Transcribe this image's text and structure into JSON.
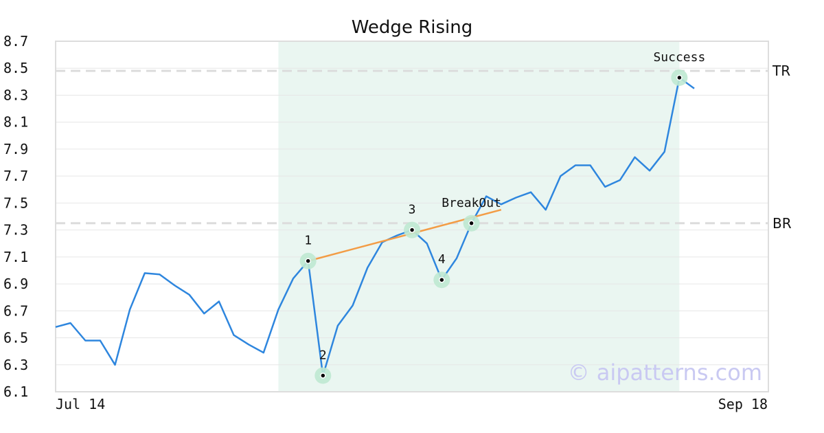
{
  "chart_data": {
    "type": "line",
    "title": "Wedge Rising",
    "xlabel": "",
    "ylabel": "",
    "ylim": [
      6.1,
      8.7
    ],
    "yticks": [
      "8.7",
      "8.5",
      "8.3",
      "8.1",
      "7.9",
      "7.7",
      "7.5",
      "7.3",
      "7.1",
      "6.9",
      "6.7",
      "6.5",
      "6.3",
      "6.1"
    ],
    "x_range_labels": [
      "Jul 14",
      "Sep 18"
    ],
    "grid": true,
    "series": [
      {
        "color": "#2e86de",
        "values": [
          6.58,
          6.61,
          6.48,
          6.48,
          6.3,
          6.71,
          6.98,
          6.97,
          6.89,
          6.82,
          6.68,
          6.77,
          6.52,
          6.45,
          6.39,
          6.71,
          6.94,
          7.07,
          6.22,
          6.59,
          6.74,
          7.02,
          7.21,
          7.26,
          7.3,
          7.2,
          6.93,
          7.09,
          7.35,
          7.55,
          7.49,
          7.54,
          7.58,
          7.45,
          7.7,
          7.78,
          7.78,
          7.62,
          7.67,
          7.84,
          7.74,
          7.88,
          8.43,
          8.35
        ]
      }
    ],
    "highlight_range": {
      "start_index": 15,
      "end_index": 42,
      "color": "#eaf6f1"
    },
    "levels": [
      {
        "label": "TR",
        "value": 8.48
      },
      {
        "label": "BR",
        "value": 7.35
      }
    ],
    "trendline": {
      "color": "#f39c45",
      "from": {
        "index": 17,
        "value": 7.07
      },
      "to": {
        "index": 30,
        "value": 7.45
      }
    },
    "pivots": [
      {
        "label": "1",
        "index": 17,
        "value": 7.07
      },
      {
        "label": "2",
        "index": 18,
        "value": 6.22
      },
      {
        "label": "3",
        "index": 24,
        "value": 7.3
      },
      {
        "label": "4",
        "index": 26,
        "value": 6.93
      }
    ],
    "events": [
      {
        "label": "BreakOut",
        "index": 28,
        "value": 7.35
      },
      {
        "label": "Success",
        "index": 42,
        "value": 8.43
      }
    ],
    "watermark": "© aipatterns.com"
  }
}
